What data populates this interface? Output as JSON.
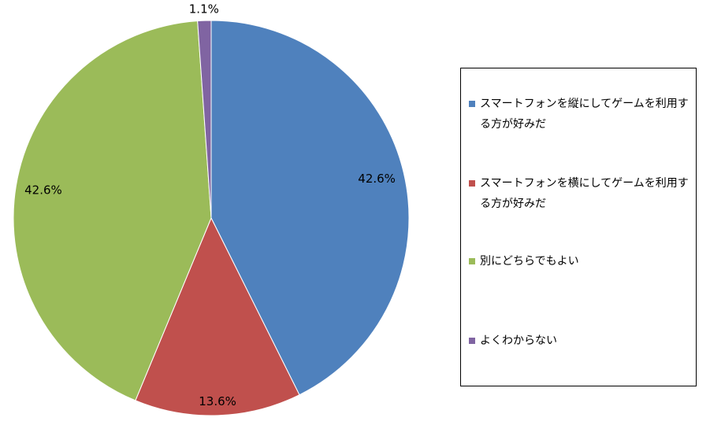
{
  "chart_data": {
    "type": "pie",
    "categories": [
      "スマートフォンを縦にしてゲームを利用する方が好みだ",
      "スマートフォンを横にしてゲームを利用する方が好みだ",
      "別にどちらでもよい",
      "よくわからない"
    ],
    "values": [
      42.6,
      13.6,
      42.6,
      1.1
    ],
    "value_labels": [
      "42.6%",
      "13.6%",
      "42.6%",
      "1.1%"
    ],
    "colors": [
      "#4f81bd",
      "#c0504d",
      "#9bbb59",
      "#8064a2"
    ]
  }
}
